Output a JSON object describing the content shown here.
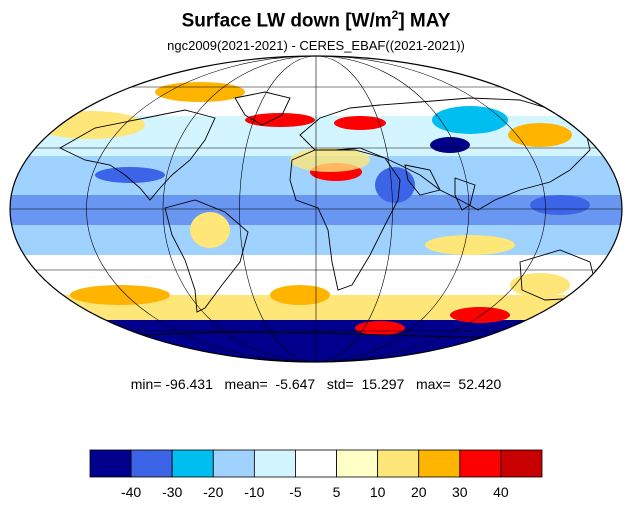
{
  "header": {
    "title_prefix": "Surface LW down [W/m",
    "title_sup": "2",
    "title_suffix": "]  MAY",
    "subtitle": "ngc2009(2021-2021) - CERES_EBAF((2021-2021))"
  },
  "stats": {
    "text": "min= -96.431   mean=  -5.647   std=  15.297   max=  52.420"
  },
  "colorbar": {
    "colors": [
      "#00008c",
      "#3c64e6",
      "#00bef0",
      "#a0d2ff",
      "#d2f5ff",
      "#ffffff",
      "#ffffc8",
      "#ffe678",
      "#ffb400",
      "#ff0000",
      "#c80000"
    ],
    "labels": [
      "-40",
      "-30",
      "-20",
      "-10",
      "-5",
      "5",
      "10",
      "20",
      "30",
      "40"
    ]
  },
  "map": {
    "projection": "mollweide",
    "land_outline_color": "#000000"
  }
}
